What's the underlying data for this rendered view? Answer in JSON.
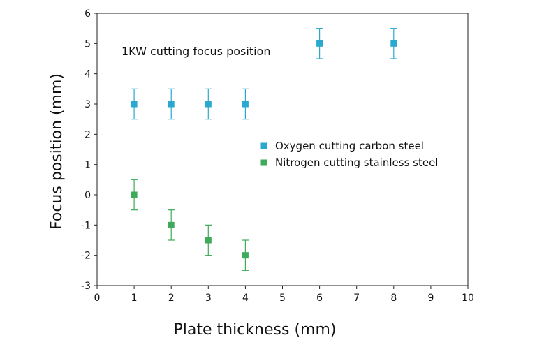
{
  "chart_data": {
    "type": "scatter",
    "title": "",
    "annotation": "1KW cutting focus position",
    "xlabel": "Plate thickness (mm)",
    "ylabel": "Focus position (mm)",
    "xlim": [
      0,
      10
    ],
    "ylim": [
      -3,
      6
    ],
    "xticks": [
      "0",
      "1",
      "2",
      "3",
      "4",
      "5",
      "6",
      "7",
      "8",
      "9",
      "10"
    ],
    "yticks": [
      "6",
      "5",
      "4",
      "3",
      "2",
      "1",
      "0",
      "-1",
      "-2",
      "-3"
    ],
    "grid": false,
    "legend_position": "center-right",
    "series": [
      {
        "name": "Oxygen cutting carbon steel",
        "color": "#2aa9cf",
        "marker": "square",
        "points": [
          {
            "x": 1,
            "y": 3,
            "err": 0.5
          },
          {
            "x": 2,
            "y": 3,
            "err": 0.5
          },
          {
            "x": 3,
            "y": 3,
            "err": 0.5
          },
          {
            "x": 4,
            "y": 3,
            "err": 0.5
          },
          {
            "x": 6,
            "y": 5,
            "err": 0.5
          },
          {
            "x": 8,
            "y": 5,
            "err": 0.5
          }
        ]
      },
      {
        "name": "Nitrogen cutting stainless steel",
        "color": "#3eaa5a",
        "marker": "square",
        "points": [
          {
            "x": 1,
            "y": 0,
            "err": 0.5
          },
          {
            "x": 2,
            "y": -1,
            "err": 0.5
          },
          {
            "x": 3,
            "y": -1.5,
            "err": 0.5
          },
          {
            "x": 4,
            "y": -2,
            "err": 0.5
          }
        ]
      }
    ]
  }
}
